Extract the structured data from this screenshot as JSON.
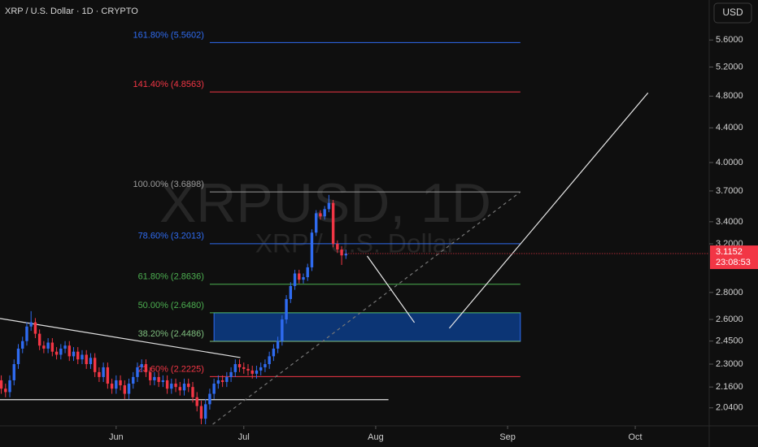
{
  "chart_data": {
    "type": "candlestick",
    "title": "XRP / U.S. Dollar · 1D · CRYPTO",
    "currency": "USD",
    "watermark": "XRPUSD, 1D",
    "watermark_subtitle": "XRP / U.S. Dollar",
    "countdown": "23:08:53",
    "log_scale": true,
    "up_color": "#2f6bf0",
    "down_color": "#f23645",
    "xlim": [
      123.7,
      290
    ],
    "ylim": [
      1.95,
      6.25
    ],
    "xticks": [
      {
        "value": 151,
        "label": "Jun"
      },
      {
        "value": 181,
        "label": "Jul"
      },
      {
        "value": 212,
        "label": "Aug"
      },
      {
        "value": 243,
        "label": "Sep"
      },
      {
        "value": 273,
        "label": "Oct"
      }
    ],
    "yticks": [
      {
        "value": 5.6,
        "label": "5.6000"
      },
      {
        "value": 5.2,
        "label": "5.2000"
      },
      {
        "value": 4.8,
        "label": "4.8000"
      },
      {
        "value": 4.4,
        "label": "4.4000"
      },
      {
        "value": 4.0,
        "label": "4.0000"
      },
      {
        "value": 3.7,
        "label": "3.7000"
      },
      {
        "value": 3.4,
        "label": "3.4000"
      },
      {
        "value": 3.2,
        "label": "3.2000"
      },
      {
        "value": 2.8,
        "label": "2.8000"
      },
      {
        "value": 2.6,
        "label": "2.6000"
      },
      {
        "value": 2.45,
        "label": "2.4500"
      },
      {
        "value": 2.3,
        "label": "2.3000"
      },
      {
        "value": 2.16,
        "label": "2.1600"
      },
      {
        "value": 2.04,
        "label": "2.0400"
      }
    ],
    "ohlc": {
      "x": [
        124,
        125,
        126,
        127,
        128,
        129,
        130,
        131,
        132,
        133,
        134,
        135,
        136,
        137,
        138,
        139,
        140,
        141,
        142,
        143,
        144,
        145,
        146,
        147,
        148,
        149,
        150,
        151,
        152,
        153,
        154,
        155,
        156,
        157,
        158,
        159,
        160,
        161,
        162,
        163,
        164,
        165,
        166,
        167,
        168,
        169,
        170,
        171,
        172,
        173,
        174,
        175,
        176,
        177,
        178,
        179,
        180,
        181,
        182,
        183,
        184,
        185,
        186,
        187,
        188,
        189,
        190,
        191,
        192,
        193,
        194,
        195,
        196,
        197,
        198,
        199,
        200,
        201,
        202,
        203,
        204,
        205
      ],
      "open": [
        2.2,
        2.15,
        2.13,
        2.2,
        2.3,
        2.4,
        2.45,
        2.55,
        2.58,
        2.5,
        2.42,
        2.4,
        2.44,
        2.38,
        2.36,
        2.4,
        2.42,
        2.35,
        2.38,
        2.33,
        2.36,
        2.3,
        2.34,
        2.25,
        2.22,
        2.28,
        2.18,
        2.15,
        2.2,
        2.17,
        2.12,
        2.18,
        2.22,
        2.28,
        2.3,
        2.25,
        2.2,
        2.22,
        2.19,
        2.2,
        2.15,
        2.18,
        2.16,
        2.14,
        2.18,
        2.16,
        2.1,
        2.05,
        1.98,
        2.06,
        2.12,
        2.18,
        2.2,
        2.19,
        2.22,
        2.25,
        2.3,
        2.28,
        2.27,
        2.26,
        2.24,
        2.26,
        2.28,
        2.3,
        2.35,
        2.4,
        2.45,
        2.6,
        2.75,
        2.85,
        2.95,
        2.9,
        2.92,
        3.0,
        3.3,
        3.48,
        3.45,
        3.52,
        3.58,
        3.2,
        3.15,
        3.1
      ],
      "high": [
        2.23,
        2.18,
        2.23,
        2.33,
        2.43,
        2.48,
        2.58,
        2.66,
        2.61,
        2.53,
        2.45,
        2.47,
        2.47,
        2.41,
        2.43,
        2.45,
        2.45,
        2.41,
        2.41,
        2.39,
        2.39,
        2.37,
        2.37,
        2.28,
        2.31,
        2.31,
        2.21,
        2.23,
        2.23,
        2.2,
        2.21,
        2.25,
        2.31,
        2.33,
        2.33,
        2.28,
        2.25,
        2.25,
        2.23,
        2.23,
        2.21,
        2.21,
        2.19,
        2.21,
        2.21,
        2.19,
        2.13,
        2.08,
        2.09,
        2.15,
        2.21,
        2.23,
        2.23,
        2.25,
        2.28,
        2.33,
        2.33,
        2.31,
        2.3,
        2.29,
        2.29,
        2.31,
        2.33,
        2.38,
        2.43,
        2.48,
        2.63,
        2.78,
        2.88,
        2.98,
        2.98,
        2.95,
        3.03,
        3.33,
        3.51,
        3.51,
        3.55,
        3.66,
        3.61,
        3.23,
        3.18,
        3.15
      ],
      "low": [
        2.12,
        2.1,
        2.1,
        2.17,
        2.27,
        2.37,
        2.42,
        2.52,
        2.47,
        2.39,
        2.37,
        2.37,
        2.35,
        2.33,
        2.33,
        2.37,
        2.32,
        2.32,
        2.3,
        2.3,
        2.27,
        2.27,
        2.22,
        2.19,
        2.19,
        2.15,
        2.12,
        2.12,
        2.14,
        2.09,
        2.09,
        2.15,
        2.19,
        2.25,
        2.22,
        2.17,
        2.17,
        2.16,
        2.16,
        2.12,
        2.12,
        2.13,
        2.11,
        2.11,
        2.13,
        2.07,
        2.02,
        1.95,
        1.95,
        2.03,
        2.09,
        2.15,
        2.16,
        2.16,
        2.19,
        2.22,
        2.25,
        2.24,
        2.23,
        2.21,
        2.21,
        2.23,
        2.25,
        2.27,
        2.32,
        2.37,
        2.42,
        2.57,
        2.72,
        2.82,
        2.87,
        2.87,
        2.89,
        2.97,
        3.27,
        3.42,
        3.42,
        3.49,
        3.17,
        3.12,
        3.02,
        3.07
      ],
      "close": [
        2.15,
        2.13,
        2.2,
        2.3,
        2.4,
        2.45,
        2.55,
        2.58,
        2.5,
        2.42,
        2.4,
        2.44,
        2.38,
        2.36,
        2.4,
        2.42,
        2.35,
        2.38,
        2.33,
        2.36,
        2.3,
        2.34,
        2.25,
        2.22,
        2.28,
        2.18,
        2.15,
        2.2,
        2.17,
        2.12,
        2.18,
        2.22,
        2.28,
        2.3,
        2.25,
        2.2,
        2.22,
        2.19,
        2.2,
        2.15,
        2.18,
        2.16,
        2.14,
        2.18,
        2.16,
        2.1,
        2.05,
        1.98,
        2.06,
        2.12,
        2.18,
        2.2,
        2.19,
        2.22,
        2.25,
        2.3,
        2.28,
        2.27,
        2.26,
        2.24,
        2.26,
        2.28,
        2.3,
        2.35,
        2.4,
        2.45,
        2.6,
        2.75,
        2.85,
        2.95,
        2.9,
        2.92,
        3.0,
        3.3,
        3.48,
        3.45,
        3.52,
        3.58,
        3.2,
        3.15,
        3.1,
        3.1152
      ]
    },
    "fib_x": [
      173,
      246
    ],
    "fib_levels": [
      {
        "label": "161.80% (5.5602)",
        "value": 5.5602,
        "color": "#2f6bf0"
      },
      {
        "label": "141.40% (4.8563)",
        "value": 4.8563,
        "color": "#f23645"
      },
      {
        "label": "100.00% (3.6898)",
        "value": 3.6898,
        "color": "#9a9a9a"
      },
      {
        "label": "78.60% (3.2013)",
        "value": 3.2013,
        "color": "#2f6bf0"
      },
      {
        "label": "61.80% (2.8636)",
        "value": 2.8636,
        "color": "#4caf50"
      },
      {
        "label": "50.00% (2.6480)",
        "value": 2.648,
        "color": "#4caf50"
      },
      {
        "label": "38.20% (2.4486)",
        "value": 2.4486,
        "color": "#7fbf7f"
      },
      {
        "label": "23.60% (2.2225)",
        "value": 2.2225,
        "color": "#f23645"
      }
    ],
    "zone": {
      "x": [
        174,
        246
      ],
      "y": [
        2.4486,
        2.648
      ],
      "color": "#0c3575"
    },
    "drawings": [
      {
        "x": [
          123.7,
          180.2
        ],
        "y": [
          2.607,
          2.342
        ],
        "color": "#e0e0e0"
      },
      {
        "x": [
          123.7,
          215
        ],
        "y": [
          2.086,
          2.086
        ],
        "color": "#e0e0e0"
      },
      {
        "x": [
          173.7,
          246
        ],
        "y": [
          1.95,
          3.69
        ],
        "color": "#777777",
        "dashed": true
      },
      {
        "x": [
          210,
          221.1
        ],
        "y": [
          3.095,
          2.578
        ],
        "color": "#e8e8e8"
      },
      {
        "x": [
          229.3,
          276
        ],
        "y": [
          2.538,
          4.844
        ],
        "color": "#e8e8e8"
      }
    ]
  }
}
